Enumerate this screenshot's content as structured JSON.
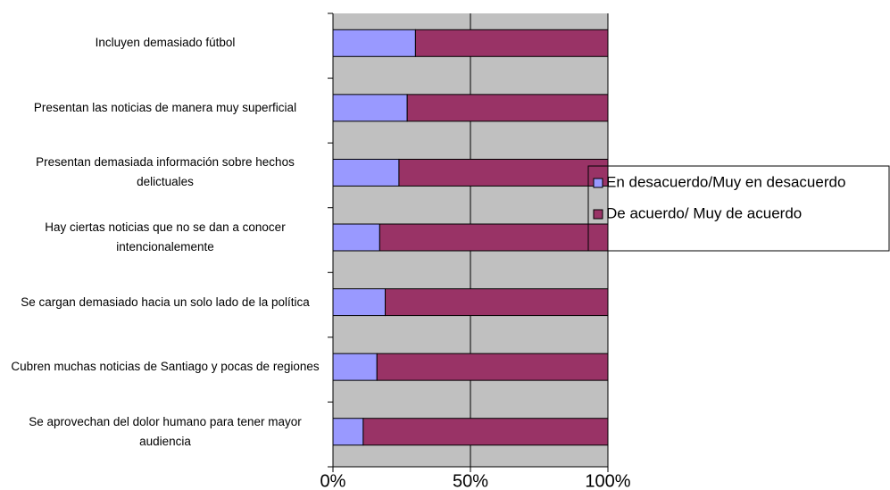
{
  "chart_data": {
    "type": "stacked_barh",
    "categories": [
      "Incluyen demasiado fútbol",
      "Presentan las noticias de manera muy superficial",
      "Presentan demasiada información sobre hechos delictuales",
      "Hay ciertas noticias que no se dan a conocer intencionalemente",
      "Se cargan demasiado hacia un solo lado de la política",
      "Cubren muchas noticias de Santiago y pocas de regiones",
      "Se aprovechan del dolor humano para tener mayor audiencia"
    ],
    "series": [
      {
        "name": "En desacuerdo/Muy en desacuerdo",
        "color": "#9999ff",
        "values": [
          30,
          27,
          24,
          17,
          19,
          16,
          11
        ]
      },
      {
        "name": "De acuerdo/ Muy de acuerdo",
        "color": "#993366",
        "values": [
          70,
          73,
          76,
          83,
          81,
          84,
          89
        ]
      }
    ],
    "xlim": [
      0,
      100
    ],
    "xticks": [
      {
        "value": 0,
        "label": "0%"
      },
      {
        "value": 50,
        "label": "50%"
      },
      {
        "value": 100,
        "label": "100%"
      }
    ],
    "grid": true,
    "legend": "right"
  }
}
